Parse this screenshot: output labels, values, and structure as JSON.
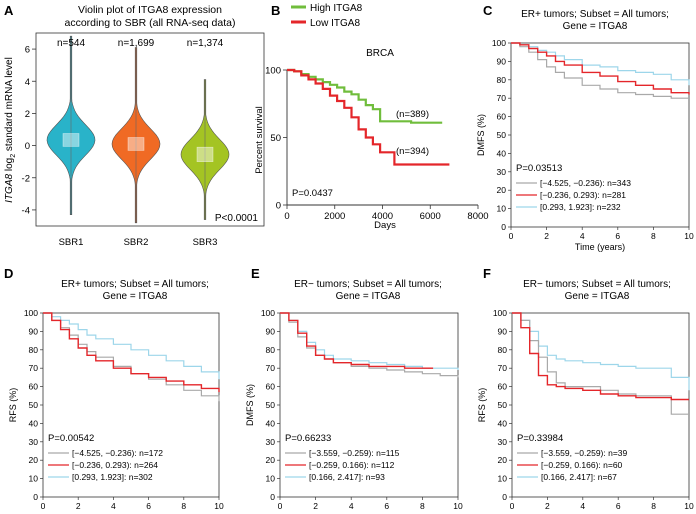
{
  "panels": {
    "A": {
      "letter": "A",
      "title_line1": "Violin plot of ITGA8 expression",
      "title_line2": "according to SBR (all RNA-seq data)"
    },
    "B": {
      "letter": "B"
    },
    "C": {
      "letter": "C"
    },
    "D": {
      "letter": "D"
    },
    "E": {
      "letter": "E"
    },
    "F": {
      "letter": "F"
    }
  },
  "colors": {
    "violin_sbr1": "#29b3c9",
    "violin_sbr2": "#f06a24",
    "violin_sbr3": "#a4c423",
    "high": "#70bd3c",
    "low": "#e4262a",
    "km_gray": "#a9a9a9",
    "km_red": "#e4262a",
    "km_blue": "#9dd6ea"
  },
  "chart_data": [
    {
      "id": "A",
      "type": "violin",
      "title": "Violin plot of ITGA8 expression according to SBR (all RNA-seq data)",
      "ylabel": "ITGA8 log2 standard mRNA level",
      "ylabel_parts": {
        "gene": "ITGA8",
        "mid": " log",
        "sub": "2",
        "end": " standard mRNA level"
      },
      "categories": [
        "SBR1",
        "SBR2",
        "SBR3"
      ],
      "counts": [
        "n=544",
        "n=1,699",
        "n=1,374"
      ],
      "medians": [
        0.35,
        0.1,
        -0.55
      ],
      "q1": [
        -0.05,
        -0.3,
        -1.0
      ],
      "q3": [
        0.75,
        0.5,
        -0.1
      ],
      "ymin_whisker": [
        -4.3,
        -4.8,
        -4.6
      ],
      "ymax_whisker": [
        6.8,
        6.1,
        4.1
      ],
      "ylim": [
        -5,
        7
      ],
      "yticks": [
        "-4",
        "-2",
        "0",
        "2",
        "4",
        "6"
      ],
      "ytick_values": [
        -4,
        -2,
        0,
        2,
        4,
        6
      ],
      "pvalue": "P<0.0001"
    },
    {
      "id": "B",
      "type": "line",
      "title": "BRCA",
      "xlabel": "Days",
      "ylabel": "Percent survival",
      "xlim": [
        0,
        8000
      ],
      "ylim": [
        0,
        100
      ],
      "xticks": [
        "0",
        "2000",
        "4000",
        "6000",
        "8000"
      ],
      "xtick_values": [
        0,
        2000,
        4000,
        6000,
        8000
      ],
      "yticks": [
        "0",
        "50",
        "100"
      ],
      "ytick_values": [
        0,
        50,
        100
      ],
      "legend": [
        "High ITGA8",
        "Low ITGA8"
      ],
      "series": [
        {
          "name": "High ITGA8",
          "label": "(n=389)",
          "x": [
            0,
            300,
            600,
            900,
            1200,
            1500,
            1800,
            2100,
            2400,
            2700,
            3000,
            3300,
            3600,
            3900,
            4200,
            4600,
            5200,
            6500
          ],
          "y": [
            100,
            99,
            97,
            95,
            93,
            91,
            89,
            87,
            84,
            82,
            78,
            74,
            71,
            62,
            62,
            62,
            61,
            61
          ]
        },
        {
          "name": "Low ITGA8",
          "label": "(n=394)",
          "x": [
            0,
            300,
            600,
            900,
            1200,
            1500,
            1800,
            2100,
            2400,
            2700,
            3000,
            3300,
            3600,
            3900,
            4200,
            4500,
            5500,
            6800
          ],
          "y": [
            100,
            99,
            96,
            93,
            90,
            86,
            81,
            77,
            72,
            65,
            56,
            50,
            45,
            39,
            39,
            30,
            30,
            30
          ]
        }
      ],
      "pvalue": "P=0.0437"
    },
    {
      "id": "C",
      "type": "line",
      "title_lines": [
        "ER+ tumors; Subset = All tumors;",
        "Gene = ITGA8"
      ],
      "xlabel": "Time (years)",
      "ylabel": "DMFS (%)",
      "xlim": [
        0,
        10
      ],
      "ylim": [
        0,
        100
      ],
      "xticks": [
        "0",
        "2",
        "4",
        "6",
        "8",
        "10"
      ],
      "xtick_values": [
        0,
        2,
        4,
        6,
        8,
        10
      ],
      "yticks": [
        "0",
        "10",
        "20",
        "30",
        "40",
        "50",
        "60",
        "70",
        "80",
        "90",
        "100"
      ],
      "ytick_values": [
        0,
        10,
        20,
        30,
        40,
        50,
        60,
        70,
        80,
        90,
        100
      ],
      "pvalue": "P=0.03513",
      "series": [
        {
          "name": "[−4.525, −0.236): n=343",
          "color": "gray",
          "x": [
            0,
            0.5,
            1,
            1.5,
            2,
            2.5,
            3,
            4,
            5,
            6,
            7,
            8,
            9,
            10
          ],
          "y": [
            100,
            98,
            95,
            91,
            87,
            84,
            81,
            77,
            75,
            73,
            72,
            71,
            70,
            70
          ]
        },
        {
          "name": "[−0.236, 0.293): n=281",
          "color": "red",
          "x": [
            0,
            0.5,
            1,
            1.5,
            2,
            2.5,
            3,
            4,
            5,
            6,
            7,
            8,
            9,
            10
          ],
          "y": [
            100,
            99,
            97,
            95,
            93,
            90,
            88,
            84,
            82,
            79,
            77,
            75,
            73,
            72
          ]
        },
        {
          "name": "[0.293, 1.923]: n=232",
          "color": "blue",
          "x": [
            0,
            0.5,
            1,
            1.5,
            2,
            2.5,
            3,
            4,
            5,
            6,
            7,
            8,
            9,
            10
          ],
          "y": [
            100,
            99,
            98,
            96,
            95,
            93,
            91,
            88,
            87,
            85,
            84,
            83,
            80,
            77
          ]
        }
      ]
    },
    {
      "id": "D",
      "type": "line",
      "title_lines": [
        "ER+ tumors; Subset = All tumors;",
        "Gene = ITGA8"
      ],
      "xlabel": "Time (years)",
      "ylabel": "RFS (%)",
      "xlim": [
        0,
        10
      ],
      "ylim": [
        0,
        100
      ],
      "xticks": [
        "0",
        "2",
        "4",
        "6",
        "8",
        "10"
      ],
      "xtick_values": [
        0,
        2,
        4,
        6,
        8,
        10
      ],
      "yticks": [
        "0",
        "10",
        "20",
        "30",
        "40",
        "50",
        "60",
        "70",
        "80",
        "90",
        "100"
      ],
      "ytick_values": [
        0,
        10,
        20,
        30,
        40,
        50,
        60,
        70,
        80,
        90,
        100
      ],
      "pvalue": "P=0.00542",
      "series": [
        {
          "name": "[−4.525, −0.236): n=172",
          "color": "gray",
          "x": [
            0,
            0.5,
            1,
            1.5,
            2,
            2.5,
            3,
            4,
            5,
            6,
            7,
            8,
            9,
            10
          ],
          "y": [
            100,
            96,
            92,
            88,
            83,
            79,
            76,
            71,
            67,
            64,
            61,
            58,
            55,
            52
          ]
        },
        {
          "name": "[−0.236, 0.293): n=264",
          "color": "red",
          "x": [
            0,
            0.5,
            1,
            1.5,
            2,
            2.5,
            3,
            4,
            5,
            6,
            7,
            8,
            9,
            10
          ],
          "y": [
            100,
            96,
            91,
            86,
            81,
            77,
            74,
            70,
            67,
            65,
            63,
            61,
            59,
            57
          ]
        },
        {
          "name": "[0.293, 1.923]: n=302",
          "color": "blue",
          "x": [
            0,
            0.5,
            1,
            1.5,
            2,
            2.5,
            3,
            4,
            5,
            6,
            7,
            8,
            9,
            10
          ],
          "y": [
            100,
            98,
            96,
            94,
            91,
            88,
            86,
            83,
            80,
            77,
            74,
            71,
            68,
            64
          ]
        }
      ]
    },
    {
      "id": "E",
      "type": "line",
      "title_lines": [
        "ER− tumors; Subset = All tumors;",
        "Gene = ITGA8"
      ],
      "xlabel": "Time (years)",
      "ylabel": "DMFS (%)",
      "xlim": [
        0,
        10
      ],
      "ylim": [
        0,
        100
      ],
      "xticks": [
        "0",
        "2",
        "4",
        "6",
        "8",
        "10"
      ],
      "xtick_values": [
        0,
        2,
        4,
        6,
        8,
        10
      ],
      "yticks": [
        "0",
        "10",
        "20",
        "30",
        "40",
        "50",
        "60",
        "70",
        "80",
        "90",
        "100"
      ],
      "ytick_values": [
        0,
        10,
        20,
        30,
        40,
        50,
        60,
        70,
        80,
        90,
        100
      ],
      "pvalue": "P=0.66233",
      "series": [
        {
          "name": "[−3.559, −0.259): n=115",
          "color": "gray",
          "x": [
            0,
            0.5,
            1,
            1.5,
            2,
            2.5,
            3,
            4,
            5,
            6,
            7,
            8,
            9,
            10
          ],
          "y": [
            100,
            95,
            87,
            81,
            77,
            75,
            73,
            71,
            70,
            69,
            68,
            67,
            66,
            65
          ]
        },
        {
          "name": "[−0.259, 0.166): n=112",
          "color": "red",
          "x": [
            0,
            0.5,
            1,
            1.5,
            2,
            2.5,
            3,
            4,
            5,
            6,
            7,
            8,
            8.6
          ],
          "y": [
            100,
            96,
            89,
            82,
            77,
            75,
            73,
            72,
            71,
            71,
            70,
            70,
            70
          ]
        },
        {
          "name": "[0.166, 2.417]: n=93",
          "color": "blue",
          "x": [
            0,
            0.5,
            1,
            1.5,
            2,
            2.5,
            3,
            4,
            5,
            6,
            7,
            8,
            9,
            10
          ],
          "y": [
            100,
            96,
            90,
            84,
            80,
            77,
            75,
            74,
            73,
            72,
            71,
            70,
            70,
            69
          ]
        }
      ]
    },
    {
      "id": "F",
      "type": "line",
      "title_lines": [
        "ER− tumors; Subset = All tumors;",
        "Gene = ITGA8"
      ],
      "xlabel": "Time (years)",
      "ylabel": "RFS (%)",
      "xlim": [
        0,
        10
      ],
      "ylim": [
        0,
        100
      ],
      "xticks": [
        "0",
        "2",
        "4",
        "6",
        "8",
        "10"
      ],
      "xtick_values": [
        0,
        2,
        4,
        6,
        8,
        10
      ],
      "yticks": [
        "0",
        "10",
        "20",
        "30",
        "40",
        "50",
        "60",
        "70",
        "80",
        "90",
        "100"
      ],
      "ytick_values": [
        0,
        10,
        20,
        30,
        40,
        50,
        60,
        70,
        80,
        90,
        100
      ],
      "pvalue": "P=0.33984",
      "series": [
        {
          "name": "[−3.559, −0.259): n=39",
          "color": "gray",
          "x": [
            0,
            0.5,
            1,
            1.5,
            2,
            2.5,
            3,
            4,
            5,
            6,
            7,
            8,
            9,
            10
          ],
          "y": [
            100,
            96,
            85,
            76,
            68,
            62,
            60,
            60,
            58,
            56,
            55,
            55,
            45,
            45
          ]
        },
        {
          "name": "[−0.259, 0.166): n=60",
          "color": "red",
          "x": [
            0,
            0.5,
            1,
            1.5,
            2,
            2.5,
            3,
            4,
            5,
            6,
            7,
            8,
            9,
            10
          ],
          "y": [
            100,
            92,
            78,
            66,
            61,
            60,
            59,
            58,
            56,
            55,
            54,
            54,
            53,
            53
          ]
        },
        {
          "name": "[0.166, 2.417]: n=67",
          "color": "blue",
          "x": [
            0,
            0.5,
            1,
            1.5,
            2,
            2.5,
            3,
            4,
            5,
            6,
            7,
            8,
            9,
            10
          ],
          "y": [
            100,
            96,
            90,
            82,
            77,
            75,
            74,
            73,
            72,
            71,
            70,
            70,
            65,
            58
          ]
        }
      ]
    }
  ]
}
